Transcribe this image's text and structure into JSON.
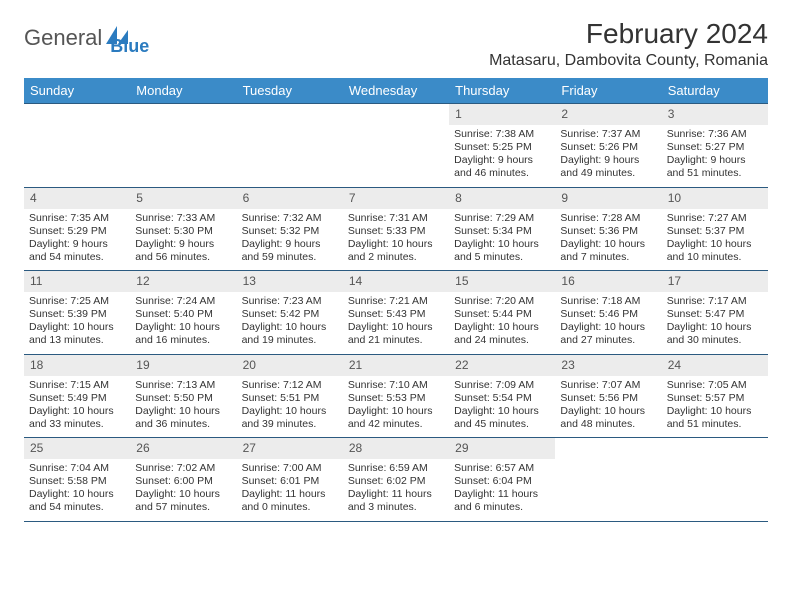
{
  "logo": {
    "text1": "General",
    "text2": "Blue"
  },
  "title": "February 2024",
  "location": "Matasaru, Dambovita County, Romania",
  "colors": {
    "header_bg": "#3b8bc8",
    "header_fg": "#ffffff",
    "rule": "#2b5a80",
    "daynum_bg": "#ececec",
    "logo_blue": "#2b7bbf"
  },
  "weekdays": [
    "Sunday",
    "Monday",
    "Tuesday",
    "Wednesday",
    "Thursday",
    "Friday",
    "Saturday"
  ],
  "weeks": [
    [
      {
        "n": "",
        "t": ""
      },
      {
        "n": "",
        "t": ""
      },
      {
        "n": "",
        "t": ""
      },
      {
        "n": "",
        "t": ""
      },
      {
        "n": "1",
        "t": "Sunrise: 7:38 AM\nSunset: 5:25 PM\nDaylight: 9 hours and 46 minutes."
      },
      {
        "n": "2",
        "t": "Sunrise: 7:37 AM\nSunset: 5:26 PM\nDaylight: 9 hours and 49 minutes."
      },
      {
        "n": "3",
        "t": "Sunrise: 7:36 AM\nSunset: 5:27 PM\nDaylight: 9 hours and 51 minutes."
      }
    ],
    [
      {
        "n": "4",
        "t": "Sunrise: 7:35 AM\nSunset: 5:29 PM\nDaylight: 9 hours and 54 minutes."
      },
      {
        "n": "5",
        "t": "Sunrise: 7:33 AM\nSunset: 5:30 PM\nDaylight: 9 hours and 56 minutes."
      },
      {
        "n": "6",
        "t": "Sunrise: 7:32 AM\nSunset: 5:32 PM\nDaylight: 9 hours and 59 minutes."
      },
      {
        "n": "7",
        "t": "Sunrise: 7:31 AM\nSunset: 5:33 PM\nDaylight: 10 hours and 2 minutes."
      },
      {
        "n": "8",
        "t": "Sunrise: 7:29 AM\nSunset: 5:34 PM\nDaylight: 10 hours and 5 minutes."
      },
      {
        "n": "9",
        "t": "Sunrise: 7:28 AM\nSunset: 5:36 PM\nDaylight: 10 hours and 7 minutes."
      },
      {
        "n": "10",
        "t": "Sunrise: 7:27 AM\nSunset: 5:37 PM\nDaylight: 10 hours and 10 minutes."
      }
    ],
    [
      {
        "n": "11",
        "t": "Sunrise: 7:25 AM\nSunset: 5:39 PM\nDaylight: 10 hours and 13 minutes."
      },
      {
        "n": "12",
        "t": "Sunrise: 7:24 AM\nSunset: 5:40 PM\nDaylight: 10 hours and 16 minutes."
      },
      {
        "n": "13",
        "t": "Sunrise: 7:23 AM\nSunset: 5:42 PM\nDaylight: 10 hours and 19 minutes."
      },
      {
        "n": "14",
        "t": "Sunrise: 7:21 AM\nSunset: 5:43 PM\nDaylight: 10 hours and 21 minutes."
      },
      {
        "n": "15",
        "t": "Sunrise: 7:20 AM\nSunset: 5:44 PM\nDaylight: 10 hours and 24 minutes."
      },
      {
        "n": "16",
        "t": "Sunrise: 7:18 AM\nSunset: 5:46 PM\nDaylight: 10 hours and 27 minutes."
      },
      {
        "n": "17",
        "t": "Sunrise: 7:17 AM\nSunset: 5:47 PM\nDaylight: 10 hours and 30 minutes."
      }
    ],
    [
      {
        "n": "18",
        "t": "Sunrise: 7:15 AM\nSunset: 5:49 PM\nDaylight: 10 hours and 33 minutes."
      },
      {
        "n": "19",
        "t": "Sunrise: 7:13 AM\nSunset: 5:50 PM\nDaylight: 10 hours and 36 minutes."
      },
      {
        "n": "20",
        "t": "Sunrise: 7:12 AM\nSunset: 5:51 PM\nDaylight: 10 hours and 39 minutes."
      },
      {
        "n": "21",
        "t": "Sunrise: 7:10 AM\nSunset: 5:53 PM\nDaylight: 10 hours and 42 minutes."
      },
      {
        "n": "22",
        "t": "Sunrise: 7:09 AM\nSunset: 5:54 PM\nDaylight: 10 hours and 45 minutes."
      },
      {
        "n": "23",
        "t": "Sunrise: 7:07 AM\nSunset: 5:56 PM\nDaylight: 10 hours and 48 minutes."
      },
      {
        "n": "24",
        "t": "Sunrise: 7:05 AM\nSunset: 5:57 PM\nDaylight: 10 hours and 51 minutes."
      }
    ],
    [
      {
        "n": "25",
        "t": "Sunrise: 7:04 AM\nSunset: 5:58 PM\nDaylight: 10 hours and 54 minutes."
      },
      {
        "n": "26",
        "t": "Sunrise: 7:02 AM\nSunset: 6:00 PM\nDaylight: 10 hours and 57 minutes."
      },
      {
        "n": "27",
        "t": "Sunrise: 7:00 AM\nSunset: 6:01 PM\nDaylight: 11 hours and 0 minutes."
      },
      {
        "n": "28",
        "t": "Sunrise: 6:59 AM\nSunset: 6:02 PM\nDaylight: 11 hours and 3 minutes."
      },
      {
        "n": "29",
        "t": "Sunrise: 6:57 AM\nSunset: 6:04 PM\nDaylight: 11 hours and 6 minutes."
      },
      {
        "n": "",
        "t": ""
      },
      {
        "n": "",
        "t": ""
      }
    ]
  ]
}
